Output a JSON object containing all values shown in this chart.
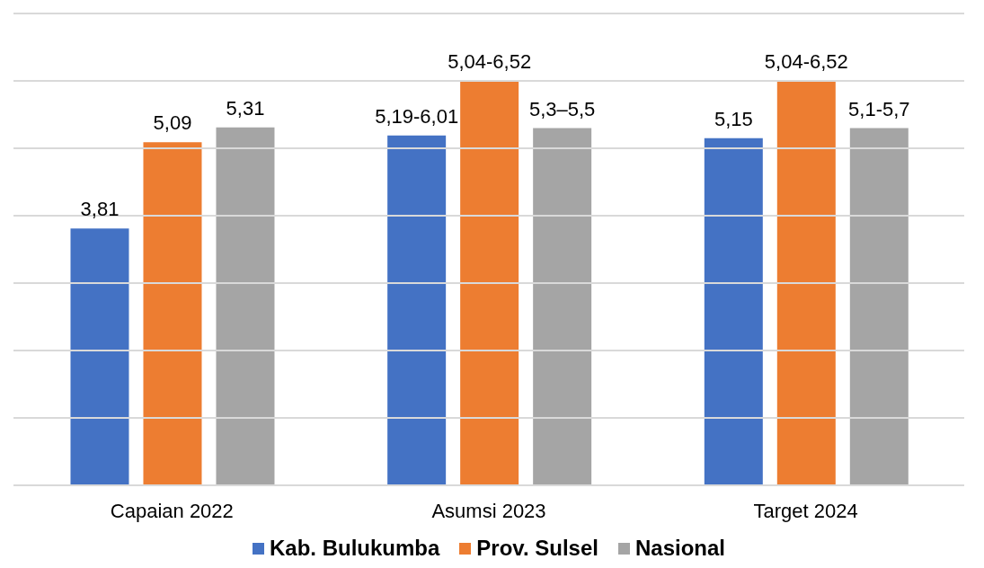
{
  "chart_data": {
    "type": "bar",
    "categories": [
      "Capaian 2022",
      "Asumsi 2023",
      "Target 2024"
    ],
    "series": [
      {
        "name": "Kab. Bulukumba",
        "color": "#4472c4",
        "values": [
          3.81,
          5.19,
          5.15
        ],
        "value_labels": [
          "3,81",
          "5,19-6,01",
          "5,15"
        ]
      },
      {
        "name": "Prov. Sulsel",
        "color": "#ed7d31",
        "values": [
          5.09,
          6.0,
          6.0
        ],
        "value_labels": [
          "5,09",
          "5,04-6,52",
          "5,04-6,52"
        ]
      },
      {
        "name": "Nasional",
        "color": "#a5a5a5",
        "values": [
          5.31,
          5.3,
          5.3
        ],
        "value_labels": [
          "5,31",
          "5,3–5,5",
          "5,1-5,7"
        ]
      }
    ],
    "ylim": [
      0,
      7
    ],
    "yticks": [
      {
        "value": 0,
        "label": null
      },
      {
        "value": 1,
        "label": null
      },
      {
        "value": 2,
        "label": null
      },
      {
        "value": 3,
        "label": null
      },
      {
        "value": 4,
        "label": null
      },
      {
        "value": 5,
        "label": null
      },
      {
        "value": 6,
        "label": null
      },
      {
        "value": 7,
        "label": null
      }
    ],
    "grid": "y",
    "legend": "bottom",
    "tick_labels": "x"
  }
}
